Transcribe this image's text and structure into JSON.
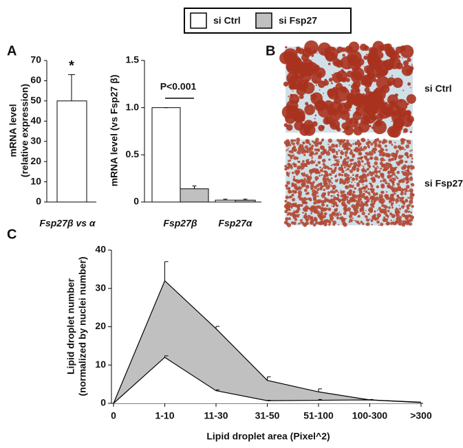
{
  "chart_data": [
    {
      "type": "bar",
      "panel": "A",
      "ylabel": [
        "mRNA level",
        "(relative expression)"
      ],
      "categories": [
        "Fsp27β vs α"
      ],
      "values": [
        50
      ],
      "errors": [
        13
      ],
      "color": "#ffffff",
      "annotation": "*",
      "ylim": [
        0,
        70
      ],
      "yticks": [
        0,
        10,
        20,
        30,
        40,
        50,
        60,
        70
      ]
    },
    {
      "type": "grouped_bar",
      "ylabel": "mRNA level (vs Fsp27 β)",
      "annotation": "P<0.001",
      "categories": [
        "Fsp27β",
        "Fsp27α"
      ],
      "series": [
        {
          "name": "si Ctrl",
          "color": "#ffffff",
          "values": [
            1.0,
            0.02
          ],
          "errors": [
            0,
            0.01
          ]
        },
        {
          "name": "si Fsp27",
          "color": "#c0c0c0",
          "values": [
            0.14,
            0.02
          ],
          "errors": [
            0.03,
            0.01
          ]
        }
      ],
      "ylim": [
        0,
        1.5
      ],
      "yticks": [
        0,
        0.5,
        {
          "value": 1,
          "label": "1.0"
        },
        1.5
      ]
    },
    {
      "type": "image",
      "panel": "B",
      "labels": [
        "si Ctrl",
        "si Fsp27"
      ]
    },
    {
      "type": "area",
      "panel": "C",
      "xlabel": "Lipid droplet area (Pixel^2)",
      "ylabel": [
        "Lipid droplet number",
        "(normalized by nuclei number)"
      ],
      "categories": [
        "0",
        "1-10",
        "11-30",
        "31-50",
        "51-100",
        "100-300",
        ">300"
      ],
      "series": [
        {
          "name": "si Fsp27",
          "color": "#c0c0c0",
          "values": [
            0,
            32,
            19.5,
            6,
            3,
            0.9,
            0.2
          ],
          "errors": [
            0,
            5,
            0.6,
            0.9,
            0.8,
            0,
            0
          ]
        },
        {
          "name": "si Ctrl",
          "color": "#ffffff",
          "values": [
            0,
            12,
            3.3,
            0.7,
            0.8,
            0.9,
            0.3
          ],
          "errors": [
            0,
            0.4,
            0.2,
            0.1,
            0.2,
            0.1,
            0
          ]
        }
      ],
      "ylim": [
        0,
        40
      ],
      "yticks": [
        0,
        10,
        20,
        30,
        40
      ]
    }
  ]
}
